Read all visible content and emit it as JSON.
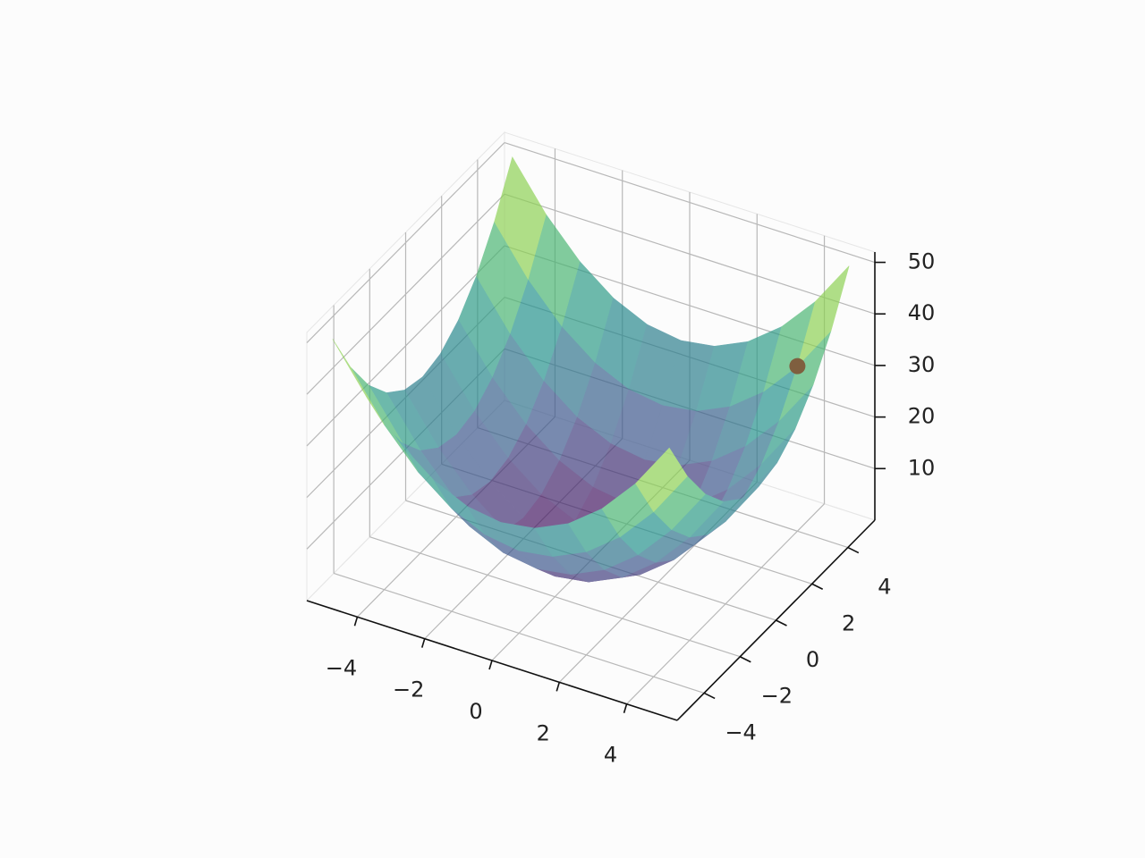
{
  "chart_data": {
    "type": "surface3d",
    "x": [
      -5,
      -4,
      -3,
      -2,
      -1,
      0,
      1,
      2,
      3,
      4,
      5
    ],
    "y": [
      -5,
      -4,
      -3,
      -2,
      -1,
      0,
      1,
      2,
      3,
      4,
      5
    ],
    "z": [
      [
        50,
        41,
        34,
        29,
        26,
        25,
        26,
        29,
        34,
        41,
        50
      ],
      [
        41,
        32,
        25,
        20,
        17,
        16,
        17,
        20,
        25,
        32,
        41
      ],
      [
        34,
        25,
        18,
        13,
        10,
        9,
        10,
        13,
        18,
        25,
        34
      ],
      [
        29,
        20,
        13,
        8,
        5,
        4,
        5,
        8,
        13,
        20,
        29
      ],
      [
        26,
        17,
        10,
        5,
        2,
        1,
        2,
        5,
        10,
        17,
        26
      ],
      [
        25,
        16,
        9,
        4,
        1,
        0,
        1,
        4,
        9,
        16,
        25
      ],
      [
        26,
        17,
        10,
        5,
        2,
        1,
        2,
        5,
        10,
        17,
        26
      ],
      [
        29,
        20,
        13,
        8,
        5,
        4,
        5,
        8,
        13,
        20,
        29
      ],
      [
        34,
        25,
        18,
        13,
        10,
        9,
        10,
        13,
        18,
        25,
        34
      ],
      [
        41,
        32,
        25,
        20,
        17,
        16,
        17,
        20,
        25,
        32,
        41
      ],
      [
        50,
        41,
        34,
        29,
        26,
        25,
        26,
        29,
        34,
        41,
        50
      ]
    ],
    "colormap": "viridis",
    "alpha": 0.68,
    "point": {
      "x": 4,
      "y": 4,
      "z": 32,
      "color": "#7f5f3f"
    },
    "xlim": [
      -5.5,
      5.5
    ],
    "ylim": [
      -5.5,
      5.5
    ],
    "zlim": [
      0,
      52
    ],
    "xticks": [
      {
        "value": -4,
        "label": "−4"
      },
      {
        "value": -2,
        "label": "−2"
      },
      0,
      2,
      4
    ],
    "yticks": [
      {
        "value": -4,
        "label": "−4"
      },
      {
        "value": -2,
        "label": "−2"
      },
      0,
      2,
      4
    ],
    "zticks": [
      10,
      20,
      30,
      40,
      50
    ],
    "grid": true
  }
}
